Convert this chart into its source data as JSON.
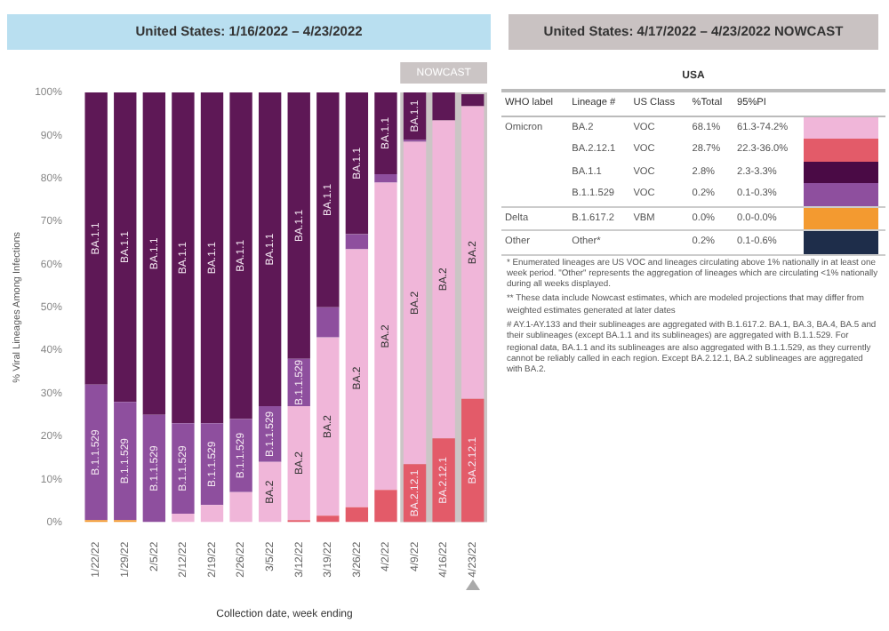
{
  "chart_data": [
    {
      "type": "bar",
      "title": "United States: 1/16/2022 – 4/23/2022",
      "xlabel": "Collection date, week ending",
      "ylabel": "% Viral Lineages Among Infections",
      "stacked": true,
      "categories": [
        "1/22/22",
        "1/29/22",
        "2/5/22",
        "2/12/22",
        "2/19/22",
        "2/26/22",
        "3/5/22",
        "3/12/22",
        "3/19/22",
        "3/26/22",
        "4/2/22",
        "4/9/22",
        "4/16/22",
        "4/23/22"
      ],
      "series": [
        {
          "color": "#f39a30",
          "values": [
            0.5,
            0.5,
            0,
            0,
            0,
            0,
            0,
            0,
            0,
            0,
            0,
            0,
            0,
            0
          ]
        },
        {
          "name": "BA.2.12.1",
          "color": "#e35b69",
          "values": [
            0,
            0,
            0,
            0,
            0,
            0,
            0,
            0.5,
            1.5,
            3.5,
            7.5,
            13.5,
            19.5,
            28.7
          ]
        },
        {
          "name": "BA.2",
          "color": "#f0b6d9",
          "values": [
            0,
            0,
            0,
            2,
            4,
            7,
            14,
            26.5,
            41.5,
            60,
            71.5,
            75,
            74,
            68.1
          ]
        },
        {
          "name": "B.1.1.529",
          "color": "#8e4f9e",
          "values": [
            31.5,
            27.5,
            25,
            21,
            19,
            17,
            13,
            11,
            7,
            3.5,
            2,
            0.5,
            0,
            null
          ]
        },
        {
          "name": "BA.1.1",
          "color": "#5e1856",
          "values": [
            68,
            72,
            75,
            77,
            77,
            76,
            73,
            62,
            50,
            33,
            19,
            11,
            6.5,
            2.8
          ]
        }
      ],
      "ylim": [
        0,
        100
      ],
      "yticks": [
        {
          "value": 0,
          "label": "0%"
        },
        {
          "value": 10,
          "label": "10%"
        },
        {
          "value": 20,
          "label": "20%"
        },
        {
          "value": 30,
          "label": "30%"
        },
        {
          "value": 40,
          "label": "40%"
        },
        {
          "value": 50,
          "label": "50%"
        },
        {
          "value": 60,
          "label": "60%"
        },
        {
          "value": 70,
          "label": "70%"
        },
        {
          "value": 80,
          "label": "80%"
        },
        {
          "value": 90,
          "label": "90%"
        },
        {
          "value": 100,
          "label": "100%"
        }
      ],
      "bands": [
        {
          "axis": "x",
          "from": "4/9/22",
          "to": "4/23/22",
          "label": "NOWCAST",
          "color": "#cbc5c5"
        }
      ]
    },
    {
      "type": "other",
      "title": "United States: 4/17/2022 – 4/23/2022 NOWCAST",
      "subtitle": "USA",
      "categories": [
        "WHO label",
        "Lineage #",
        "US Class",
        "%Total",
        "95%PI"
      ],
      "cell_labels": [
        [
          "Omicron",
          "BA.2",
          "VOC",
          "68.1%",
          "61.3-74.2%"
        ],
        [
          null,
          "BA.2.12.1",
          "VOC",
          "28.7%",
          "22.3-36.0%"
        ],
        [
          null,
          "BA.1.1",
          "VOC",
          "2.8%",
          "2.3-3.3%"
        ],
        [
          null,
          "B.1.1.529",
          "VOC",
          "0.2%",
          "0.1-0.3%"
        ],
        [
          "Delta",
          "B.1.617.2",
          "VBM",
          "0.0%",
          "0.0-0.0%"
        ],
        [
          "Other",
          "Other*",
          null,
          "0.2%",
          "0.1-0.6%"
        ]
      ],
      "colors": [
        "#f0b6d9",
        "#e35b69",
        "#4a0a45",
        "#8e4f9e",
        "#f39a30",
        "#1e2d4a"
      ],
      "annotations": [
        "*     Enumerated lineages are US VOC and lineages circulating above 1% nationally in at least one week period. \"Other\" represents the aggregation of lineages which are circulating <1% nationally during all weeks displayed.",
        "**    These data include Nowcast estimates, which are modeled projections that may differ from weighted estimates generated at later dates",
        "#     AY.1-AY.133 and their sublineages are aggregated with B.1.617.2. BA.1, BA.3, BA.4, BA.5 and their sublineages (except BA.1.1 and its sublineages) are aggregated with B.1.1.529. For regional data, BA.1.1 and its sublineages are also aggregated with B.1.1.529, as they currently cannot be reliably called in each region. Except BA.2.12.1, BA.2 sublineages are aggregated with BA.2."
      ]
    }
  ]
}
